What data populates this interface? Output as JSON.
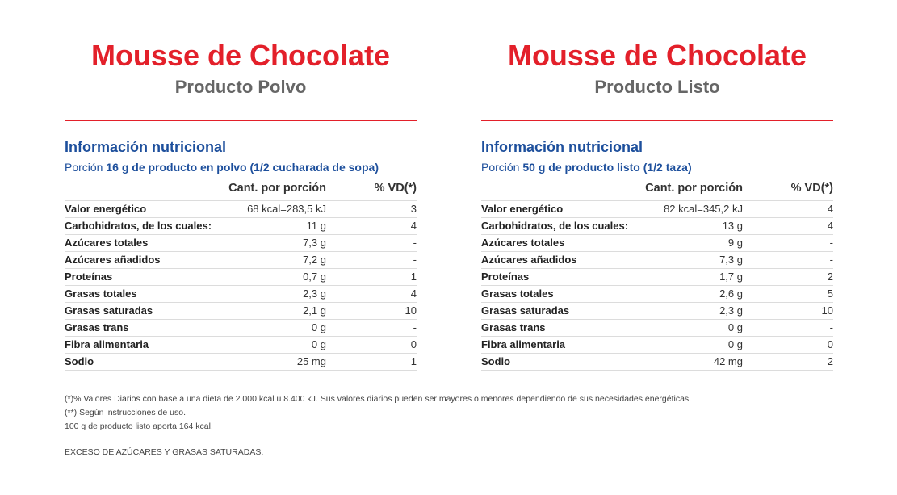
{
  "colors": {
    "title_red": "#e3202a",
    "heading_blue": "#1d4f9c",
    "subtitle_gray": "#666666"
  },
  "panels": [
    {
      "title": "Mousse de Chocolate",
      "subtitle": "Producto Polvo",
      "info_heading": "Información nutricional",
      "portion_prefix": "Porción ",
      "portion_detail": "16 g de producto en polvo (1/2 cucharada de sopa)",
      "col_amount": "Cant. por porción",
      "col_vd": "% VD(*)",
      "rows": [
        {
          "name": "Valor energético",
          "amount": "68 kcal=283,5 kJ",
          "vd": "3"
        },
        {
          "name": "Carbohidratos, de los cuales:",
          "amount": "11 g",
          "vd": "4"
        },
        {
          "name": "Azúcares totales",
          "amount": "7,3 g",
          "vd": "-"
        },
        {
          "name": "Azúcares añadidos",
          "amount": "7,2 g",
          "vd": "-"
        },
        {
          "name": "Proteínas",
          "amount": "0,7 g",
          "vd": "1"
        },
        {
          "name": "Grasas totales",
          "amount": "2,3 g",
          "vd": "4"
        },
        {
          "name": "Grasas saturadas",
          "amount": "2,1 g",
          "vd": "10"
        },
        {
          "name": "Grasas trans",
          "amount": "0 g",
          "vd": "-"
        },
        {
          "name": "Fibra alimentaria",
          "amount": "0 g",
          "vd": "0"
        },
        {
          "name": "Sodio",
          "amount": "25 mg",
          "vd": "1"
        }
      ]
    },
    {
      "title": "Mousse de Chocolate",
      "subtitle": "Producto Listo",
      "info_heading": "Información nutricional",
      "portion_prefix": "Porción ",
      "portion_detail": "50 g de producto listo (1/2 taza)",
      "col_amount": "Cant. por porción",
      "col_vd": "% VD(*)",
      "rows": [
        {
          "name": "Valor energético",
          "amount": "82 kcal=345,2 kJ",
          "vd": "4"
        },
        {
          "name": "Carbohidratos, de los cuales:",
          "amount": "13 g",
          "vd": "4"
        },
        {
          "name": "Azúcares totales",
          "amount": "9 g",
          "vd": "-"
        },
        {
          "name": "Azúcares añadidos",
          "amount": "7,3 g",
          "vd": "-"
        },
        {
          "name": "Proteínas",
          "amount": "1,7 g",
          "vd": "2"
        },
        {
          "name": "Grasas totales",
          "amount": "2,6 g",
          "vd": "5"
        },
        {
          "name": "Grasas saturadas",
          "amount": "2,3 g",
          "vd": "10"
        },
        {
          "name": "Grasas trans",
          "amount": "0 g",
          "vd": "-"
        },
        {
          "name": "Fibra alimentaria",
          "amount": "0 g",
          "vd": "0"
        },
        {
          "name": "Sodio",
          "amount": "42 mg",
          "vd": "2"
        }
      ]
    }
  ],
  "footnotes": [
    "(*)% Valores Diarios con base a una dieta de 2.000 kcal u 8.400 kJ. Sus valores diarios pueden ser mayores o menores dependiendo de sus necesidades energéticas.",
    "(**) Según instrucciones de uso.",
    "100 g de producto listo aporta 164 kcal."
  ],
  "warning": "EXCESO DE AZÚCARES Y GRASAS SATURADAS."
}
